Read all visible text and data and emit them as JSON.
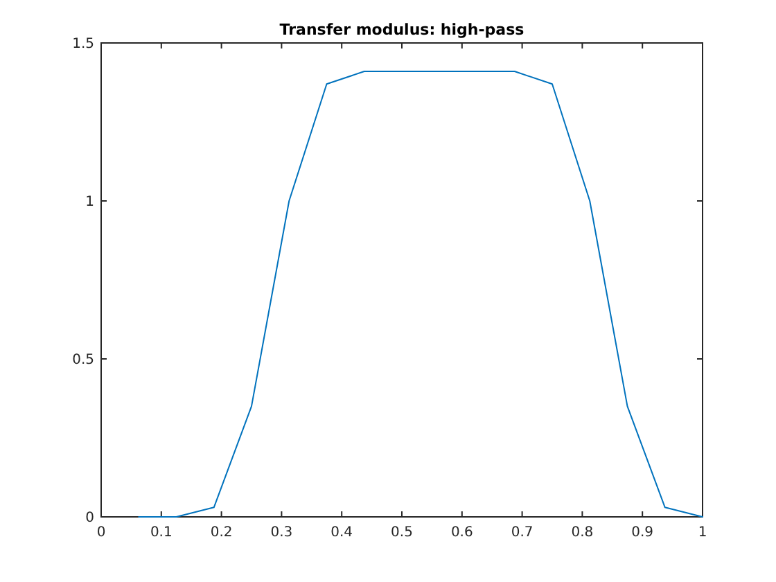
{
  "chart_data": {
    "type": "line",
    "title": "Transfer modulus: high-pass",
    "x": [
      0.0625,
      0.125,
      0.1875,
      0.25,
      0.3125,
      0.375,
      0.4375,
      0.5,
      0.5625,
      0.625,
      0.6875,
      0.75,
      0.8125,
      0.875,
      0.9375,
      1
    ],
    "series": [
      {
        "color": "#0072bd",
        "values": [
          0,
          0,
          0.03,
          0.35,
          1.0,
          1.37,
          1.41,
          1.41,
          1.41,
          1.41,
          1.41,
          1.37,
          1.0,
          0.35,
          0.03,
          0
        ]
      }
    ],
    "xlim": [
      0,
      1
    ],
    "xticks": [
      0,
      0.1,
      0.2,
      0.3,
      0.4,
      0.5,
      0.6,
      0.7,
      0.8,
      0.9,
      1
    ],
    "ylim": [
      0,
      1.5
    ],
    "yticks": [
      0,
      0.5,
      1,
      1.5
    ],
    "grid": false,
    "marker": "none",
    "line_style": "solid"
  }
}
